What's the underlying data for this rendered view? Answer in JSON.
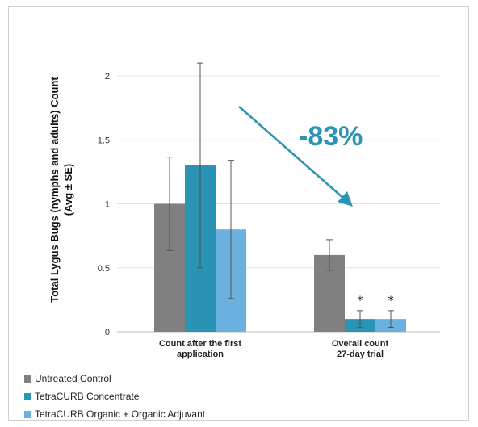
{
  "chart_data": {
    "type": "bar",
    "categories": [
      [
        "Count after the first",
        "application"
      ],
      [
        "Overall count",
        "27-day trial"
      ]
    ],
    "series": [
      {
        "name": "Untreated Control",
        "color": "#808080",
        "values": [
          1.0,
          0.6
        ],
        "errors": [
          0.365,
          0.12
        ]
      },
      {
        "name": "TetraCURB Concentrate",
        "color": "#2b93b4",
        "values": [
          1.3,
          0.1
        ],
        "errors": [
          0.8,
          0.065
        ]
      },
      {
        "name": "TetraCURB Organic + Organic Adjuvant",
        "color": "#6ab1df",
        "values": [
          0.8,
          0.1
        ],
        "errors": [
          0.54,
          0.065
        ]
      }
    ],
    "significance": [
      {
        "category": 1,
        "series": 1,
        "label": "*"
      },
      {
        "category": 1,
        "series": 2,
        "label": "*"
      }
    ],
    "ylabel": [
      "Total  Lygus Bugs (nymphs and adults) Count",
      "(Avg ± SE)"
    ],
    "xlabel": "",
    "ylim": [
      0,
      2.1
    ],
    "yticks": [
      "0",
      "0.5",
      "1",
      "1.5",
      "2"
    ],
    "grid": true,
    "legend_position": "bottom-left",
    "annotation": {
      "text": "-83%",
      "arrow_color": "#2b93b4"
    }
  }
}
